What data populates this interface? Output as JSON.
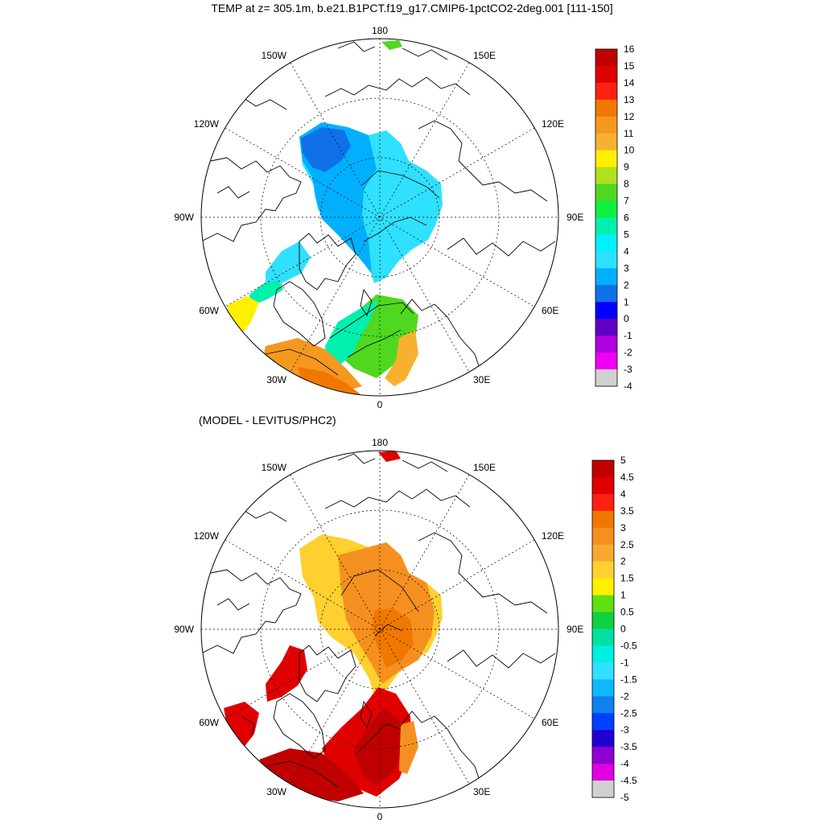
{
  "title": "TEMP at z= 305.1m, b.e21.B1PCT.f19_g17.CMIP6-1pctCO2-2deg.001 [111-150]",
  "subtitle": "(MODEL - LEVITUS/PHC2)",
  "longitude_labels": {
    "top": "180",
    "bottom": "0",
    "left": "90W",
    "right": "90E",
    "ul1": "150W",
    "ul2": "120W",
    "ur1": "150E",
    "ur2": "120E",
    "ll1": "60W",
    "ll2": "30W",
    "lr1": "60E",
    "lr2": "30E"
  },
  "maps": [
    {
      "name": "temperature",
      "colorbar": {
        "labels": [
          "16",
          "15",
          "14",
          "13",
          "12",
          "11",
          "10",
          "9",
          "8",
          "7",
          "6",
          "5",
          "4",
          "3",
          "2",
          "1",
          "0",
          "-1",
          "-2",
          "-3",
          "-4"
        ],
        "colors": [
          "#c00000",
          "#e00000",
          "#ff2010",
          "#f07800",
          "#f59820",
          "#f8b030",
          "#fff000",
          "#b0e020",
          "#50d820",
          "#10f040",
          "#00f0b0",
          "#00f0ff",
          "#30e0ff",
          "#00b0ff",
          "#1070e8",
          "#0000ff",
          "#6000c0",
          "#b000e0",
          "#f000f0",
          "#d0d0d0",
          "#707070"
        ]
      }
    },
    {
      "name": "anomaly",
      "colorbar": {
        "labels": [
          "5",
          "4.5",
          "4",
          "3.5",
          "3",
          "2.5",
          "2",
          "1.5",
          "1",
          "0.5",
          "0",
          "-0.5",
          "-1",
          "-1.5",
          "-2",
          "-2.5",
          "-3",
          "-3.5",
          "-4",
          "-4.5",
          "-5"
        ],
        "colors": [
          "#c00000",
          "#e00000",
          "#ff2010",
          "#f07800",
          "#f59020",
          "#f8a830",
          "#ffd030",
          "#fff000",
          "#60e010",
          "#10d040",
          "#00e0a0",
          "#00f0e0",
          "#30e0ff",
          "#10b8ff",
          "#1080f0",
          "#0040ff",
          "#2000d0",
          "#9000d0",
          "#e000e0",
          "#d0d0d0",
          "#707070"
        ]
      }
    }
  ]
}
